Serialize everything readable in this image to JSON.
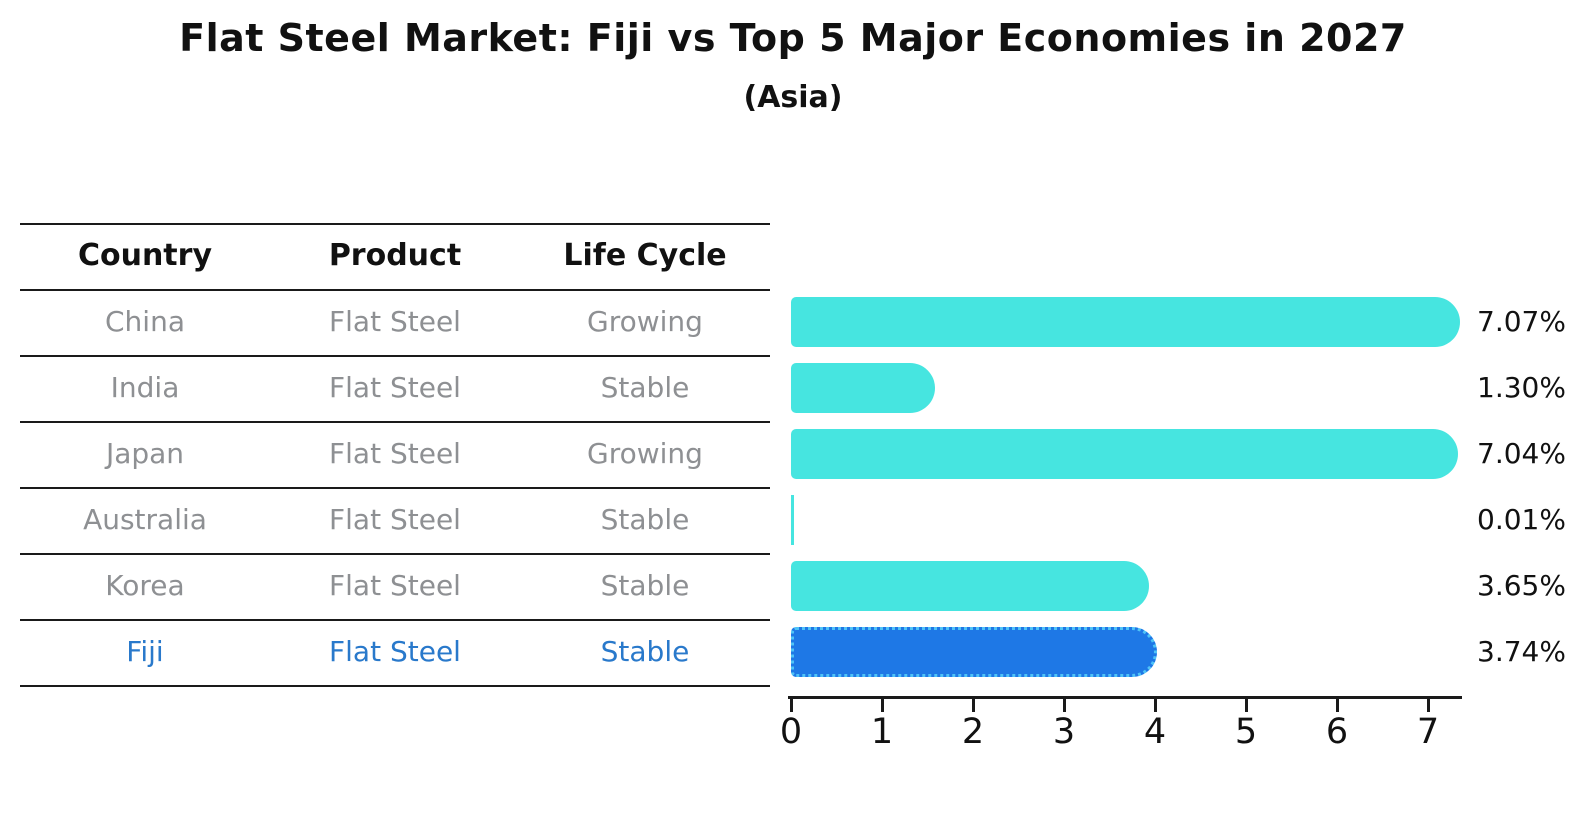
{
  "title": "Flat Steel Market: Fiji vs Top 5 Major Economies in 2027",
  "subtitle": "(Asia)",
  "table": {
    "headers": [
      "Country",
      "Product",
      "Life Cycle"
    ],
    "rows": [
      {
        "country": "China",
        "product": "Flat Steel",
        "life_cycle": "Growing",
        "value": 7.07,
        "value_label": "7.07%",
        "highlight": false
      },
      {
        "country": "India",
        "product": "Flat Steel",
        "life_cycle": "Stable",
        "value": 1.3,
        "value_label": "1.30%",
        "highlight": false
      },
      {
        "country": "Japan",
        "product": "Flat Steel",
        "life_cycle": "Growing",
        "value": 7.04,
        "value_label": "7.04%",
        "highlight": false
      },
      {
        "country": "Australia",
        "product": "Flat Steel",
        "life_cycle": "Stable",
        "value": 0.01,
        "value_label": "0.01%",
        "highlight": false
      },
      {
        "country": "Korea",
        "product": "Flat Steel",
        "life_cycle": "Stable",
        "value": 3.65,
        "value_label": "3.65%",
        "highlight": false
      },
      {
        "country": "Fiji",
        "product": "Flat Steel",
        "life_cycle": "Stable",
        "value": 3.74,
        "value_label": "3.74%",
        "highlight": true
      }
    ]
  },
  "chart_data": {
    "type": "bar",
    "orientation": "horizontal",
    "title": "Flat Steel Market: Fiji vs Top 5 Major Economies in 2027",
    "subtitle": "(Asia)",
    "categories": [
      "China",
      "India",
      "Japan",
      "Australia",
      "Korea",
      "Fiji"
    ],
    "values": [
      7.07,
      1.3,
      7.04,
      0.01,
      3.65,
      3.74
    ],
    "value_labels": [
      "7.07%",
      "1.30%",
      "7.04%",
      "0.01%",
      "3.65%",
      "3.74%"
    ],
    "xlabel": "",
    "ylabel": "",
    "xlim": [
      0,
      7.45
    ],
    "xticks": [
      0,
      1,
      2,
      3,
      4,
      5,
      6,
      7
    ],
    "grid": false,
    "legend": false,
    "highlight_category": "Fiji",
    "bar_color": "#46e5e0",
    "highlight_color": "#1e78e6",
    "highlight_border_color": "#4fc3f7"
  },
  "colors": {
    "background": "#ffffff",
    "text_primary": "#111111",
    "text_muted": "#8e9093",
    "text_highlight": "#2979cb",
    "rule": "#1a1a1a"
  }
}
